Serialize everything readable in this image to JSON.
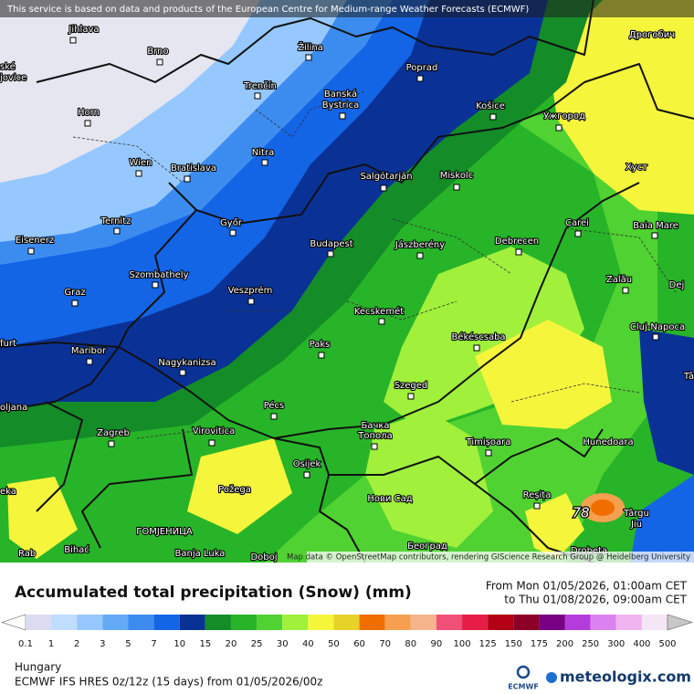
{
  "header": {
    "notice": "This service is based on data and products of the European Centre for Medium-range Weather Forecasts (ECMWF)"
  },
  "map": {
    "cities": [
      {
        "label": "Jihlava"
      },
      {
        "label": "Brno"
      },
      {
        "label": "Horn"
      },
      {
        "label": "Wien"
      },
      {
        "label": "Bratislava"
      },
      {
        "label": "Trenčín"
      },
      {
        "label": "Žilina"
      },
      {
        "label": "Poprad"
      },
      {
        "label": "Banská"
      },
      {
        "label": "Bystrica"
      },
      {
        "label": "Košice"
      },
      {
        "label": "Ужгород"
      },
      {
        "label": "Дрогобич"
      },
      {
        "label": "Nitra"
      },
      {
        "label": "Ternitz"
      },
      {
        "label": "Eisenerz"
      },
      {
        "label": "Győr"
      },
      {
        "label": "Salgótarján"
      },
      {
        "label": "Miskolc"
      },
      {
        "label": "Хуст"
      },
      {
        "label": "Carei"
      },
      {
        "label": "Baia Mare"
      },
      {
        "label": "Budapest"
      },
      {
        "label": "Jászberény"
      },
      {
        "label": "Debrecen"
      },
      {
        "label": "Szombathely"
      },
      {
        "label": "Graz"
      },
      {
        "label": "Veszprém"
      },
      {
        "label": "Zalău"
      },
      {
        "label": "Dej"
      },
      {
        "label": "Cluj-Napoca"
      },
      {
        "label": "Kecskemét"
      },
      {
        "label": "Békéscsaba"
      },
      {
        "label": "Paks"
      },
      {
        "label": "Maribor"
      },
      {
        "label": "Nagykanizsa"
      },
      {
        "label": "Szeged"
      },
      {
        "label": "Pécs"
      },
      {
        "label": "Zagreb"
      },
      {
        "label": "Virovitica"
      },
      {
        "label": "Бачка"
      },
      {
        "label": "Топола"
      },
      {
        "label": "Timișoara"
      },
      {
        "label": "Hunedoara"
      },
      {
        "label": "Osijek"
      },
      {
        "label": "Požega"
      },
      {
        "label": "Reșița"
      },
      {
        "label": "Нови Сад"
      },
      {
        "label": "Târgu"
      },
      {
        "label": "Jiu"
      },
      {
        "label": "ГОМЈЕНИЦА"
      },
      {
        "label": "Banja Luka"
      },
      {
        "label": "Bihać"
      },
      {
        "label": "Београд"
      },
      {
        "label": "Doboj"
      },
      {
        "label": "Drobeta"
      },
      {
        "label": "ské"
      },
      {
        "label": "jovice"
      },
      {
        "label": "furt"
      },
      {
        "label": "oljana"
      },
      {
        "label": "eka"
      },
      {
        "label": "Rab"
      },
      {
        "label": "Tâ"
      }
    ],
    "peak_label": "78",
    "attribution": "Map data © OpenStreetMap contributors, rendering GIScience Research Group @ Heidelberg University"
  },
  "legend": {
    "title": "Accumulated total precipitation (Snow) (mm)",
    "period_from": "From Mon 01/05/2026, 01:00am CET",
    "period_to": "to Thu 01/08/2026, 09:00am CET",
    "ticks": [
      0.1,
      1,
      2,
      3,
      5,
      7,
      10,
      15,
      20,
      25,
      30,
      40,
      50,
      60,
      70,
      80,
      90,
      100,
      125,
      150,
      175,
      200,
      250,
      300,
      400,
      500
    ],
    "colors": [
      "#ffffff",
      "#dcdcf0",
      "#c0dcff",
      "#96c8ff",
      "#64aaf5",
      "#3c8cf0",
      "#1464e6",
      "#0a3296",
      "#148c28",
      "#28b428",
      "#50d232",
      "#a0f03c",
      "#f5f53c",
      "#e6d228",
      "#f06e00",
      "#f5a050",
      "#f5b48c",
      "#f05078",
      "#e61e46",
      "#b40014",
      "#8c0028",
      "#780082",
      "#b43cdc",
      "#dc82f0",
      "#f0b4f0",
      "#f5e6f5",
      "#c8c8c8"
    ]
  },
  "footer": {
    "region": "Hungary",
    "model": "ECMWF IFS HRES 0z/12z (15 days)  from  01/05/2026/00z",
    "ecmwf": "ECMWF",
    "brand": "meteologix.com"
  }
}
